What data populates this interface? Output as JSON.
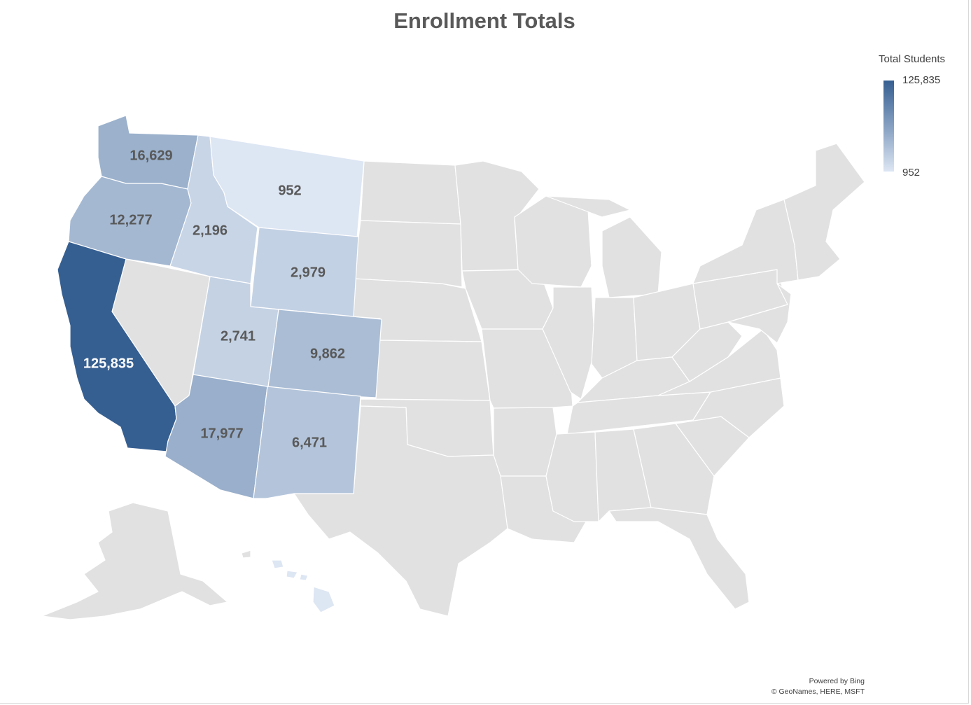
{
  "title": "Enrollment Totals",
  "legend": {
    "title": "Total Students",
    "max_label": "125,835",
    "min_label": "952",
    "min": 952,
    "max": 125835,
    "color_low": "#dde6f3",
    "color_high": "#365f91"
  },
  "attribution": {
    "line1": "Powered by Bing",
    "line2": "© GeoNames, HERE, MSFT"
  },
  "colors": {
    "no_data": "#e1e1e1",
    "border": "#ffffff"
  },
  "regions": [
    {
      "state": "California",
      "value": 125835,
      "label": "125,835"
    },
    {
      "state": "Arizona",
      "value": 17977,
      "label": "17,977"
    },
    {
      "state": "Washington",
      "value": 16629,
      "label": "16,629"
    },
    {
      "state": "Oregon",
      "value": 12277,
      "label": "12,277"
    },
    {
      "state": "Colorado",
      "value": 9862,
      "label": "9,862"
    },
    {
      "state": "New Mexico",
      "value": 6471,
      "label": "6,471"
    },
    {
      "state": "Wyoming",
      "value": 2979,
      "label": "2,979"
    },
    {
      "state": "Utah",
      "value": 2741,
      "label": "2,741"
    },
    {
      "state": "Idaho",
      "value": 2196,
      "label": "2,196"
    },
    {
      "state": "Montana",
      "value": 952,
      "label": "952"
    }
  ]
}
